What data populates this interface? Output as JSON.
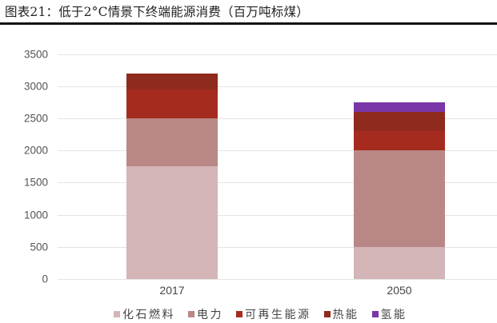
{
  "title": "图表21：低于2°C情景下终端能源消费（百万吨标煤）",
  "chart_data": {
    "type": "bar",
    "stacked": true,
    "title": "图表21：低于2°C情景下终端能源消费（百万吨标煤）",
    "xlabel": "",
    "ylabel": "",
    "ylim": [
      0,
      3500
    ],
    "yticks": [
      0,
      500,
      1000,
      1500,
      2000,
      2500,
      3000,
      3500
    ],
    "grid": true,
    "legend_position": "bottom",
    "categories": [
      "2017",
      "2050"
    ],
    "series": [
      {
        "name": "化石燃料",
        "color": "#d3b5b8",
        "values": [
          1750,
          500
        ]
      },
      {
        "name": "电力",
        "color": "#b98886",
        "values": [
          750,
          1500
        ]
      },
      {
        "name": "可再生能源",
        "color": "#a62b1f",
        "values": [
          450,
          300
        ]
      },
      {
        "name": "热能",
        "color": "#8e2a1e",
        "values": [
          250,
          300
        ]
      },
      {
        "name": "氢能",
        "color": "#7a35a8",
        "values": [
          0,
          150
        ]
      }
    ]
  },
  "yaxis": {
    "ticks": [
      "0",
      "500",
      "1000",
      "1500",
      "2000",
      "2500",
      "3000",
      "3500"
    ]
  },
  "xaxis": {
    "labels": [
      "2017",
      "2050"
    ]
  },
  "legend": {
    "items": [
      {
        "label": "化石燃料",
        "color": "#d3b5b8"
      },
      {
        "label": "电力",
        "color": "#b98886"
      },
      {
        "label": "可再生能源",
        "color": "#a62b1f"
      },
      {
        "label": "热能",
        "color": "#8e2a1e"
      },
      {
        "label": "氢能",
        "color": "#7a35a8"
      }
    ]
  }
}
